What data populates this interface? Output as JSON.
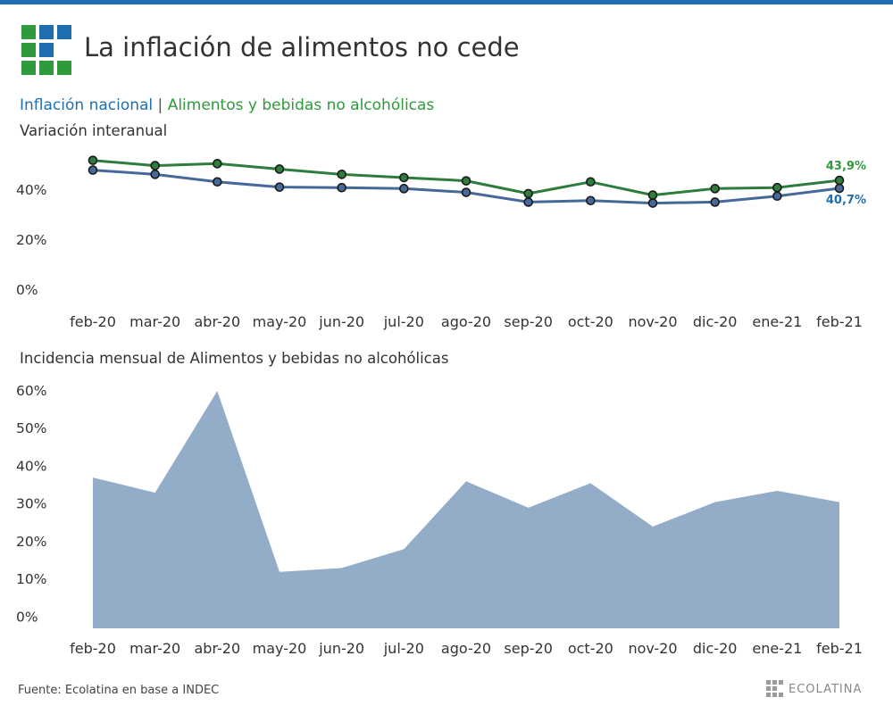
{
  "header": {
    "title": "La inflación de alimentos no cede",
    "legend_national": "Inflación nacional",
    "legend_separator": "|",
    "legend_food": "Alimentos y bebidas no alcohólicas",
    "accent_color": "#1f6fb0",
    "logo_colors": {
      "blue": "#1f6fb0",
      "green": "#2e9a3c"
    }
  },
  "chart_data": [
    {
      "type": "line",
      "title": "Variación interanual",
      "categories": [
        "feb-20",
        "mar-20",
        "abr-20",
        "may-20",
        "jun-20",
        "jul-20",
        "ago-20",
        "sep-20",
        "oct-20",
        "nov-20",
        "dic-20",
        "ene-21",
        "feb-21"
      ],
      "y_ticks": [
        {
          "value": 0,
          "label": "0%"
        },
        {
          "value": 20,
          "label": "20%"
        },
        {
          "value": 40,
          "label": "40%"
        }
      ],
      "series": [
        {
          "name": "Alimentos y bebidas no alcohólicas",
          "color": "#2e7d3c",
          "values": [
            51.9,
            49.8,
            50.6,
            48.4,
            46.3,
            45.0,
            43.7,
            38.6,
            43.3,
            38.0,
            40.6,
            41.0,
            43.9
          ],
          "end_label": "43,9%",
          "end_label_color": "#2e9a3c"
        },
        {
          "name": "Inflación nacional",
          "color": "#46699a",
          "values": [
            48.0,
            46.3,
            43.3,
            41.2,
            41.0,
            40.6,
            39.1,
            35.2,
            35.8,
            34.8,
            35.2,
            37.6,
            40.7
          ],
          "end_label": "40,7%",
          "end_label_color": "#1f6fb0"
        }
      ],
      "ylim": [
        0,
        55
      ],
      "grid": false,
      "legend": "top-left"
    },
    {
      "type": "area",
      "title": "Incidencia mensual de Alimentos y bebidas no alcohólicas",
      "categories": [
        "feb-20",
        "mar-20",
        "abr-20",
        "may-20",
        "jun-20",
        "jul-20",
        "ago-20",
        "sep-20",
        "oct-20",
        "nov-20",
        "dic-20",
        "ene-21",
        "feb-21"
      ],
      "y_ticks": [
        {
          "value": 0,
          "label": "0%"
        },
        {
          "value": 10,
          "label": "10%"
        },
        {
          "value": 20,
          "label": "20%"
        },
        {
          "value": 30,
          "label": "30%"
        },
        {
          "value": 40,
          "label": "40%"
        },
        {
          "value": 50,
          "label": "50%"
        },
        {
          "value": 60,
          "label": "60%"
        }
      ],
      "values": [
        37,
        33,
        60,
        12,
        13,
        18,
        36,
        29,
        35.5,
        24,
        30.5,
        33.5,
        30.5
      ],
      "fill_color": "#93adc9",
      "ylim": [
        -3,
        60
      ],
      "grid": false
    }
  ],
  "footer": {
    "source": "Fuente: Ecolatina en base a INDEC",
    "brand": "ECOLATINA"
  }
}
